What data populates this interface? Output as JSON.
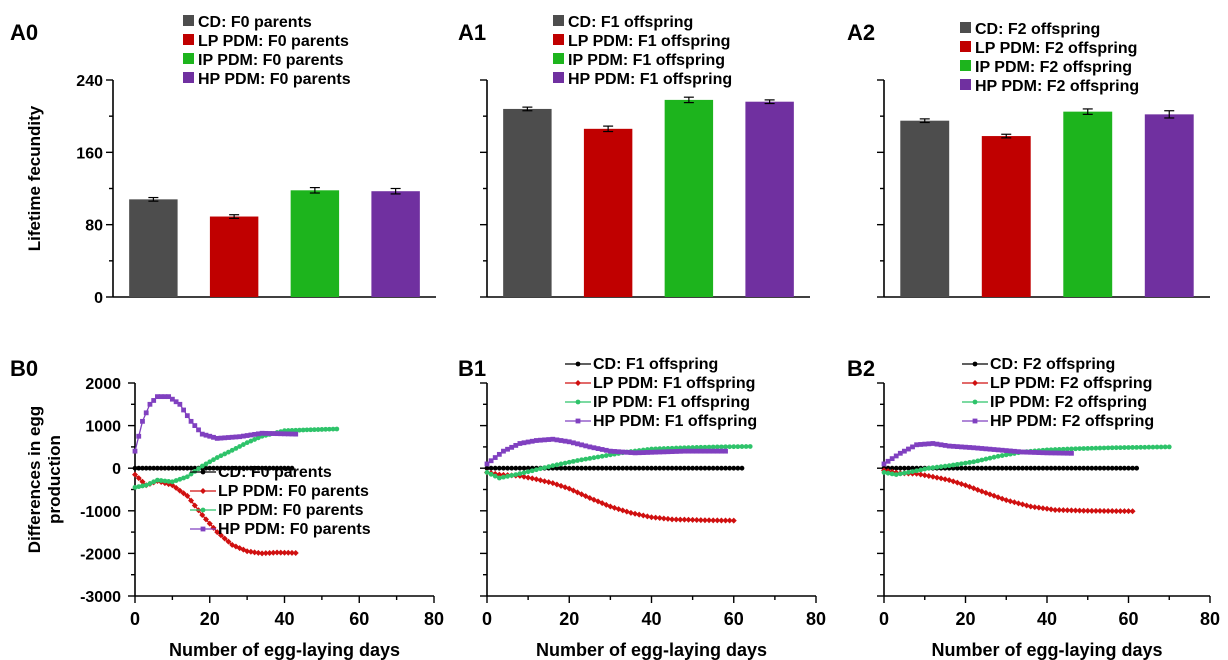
{
  "colors": {
    "CD": "#4d4d4d",
    "LP": "#c00000",
    "IP": "#1db41d",
    "HP": "#7030a0",
    "B_CD": "#000000",
    "B_LP": "#d01010",
    "B_IP": "#2ec36a",
    "B_HP": "#8040c0"
  },
  "chart_data": [
    {
      "panel": "A0",
      "type": "bar",
      "ylabel": "Lifetime fecundity",
      "ylim": [
        0,
        240
      ],
      "yticks": [
        "0",
        "80",
        "160",
        "240"
      ],
      "categories": [
        "CD",
        "LP PDM",
        "IP PDM",
        "HP PDM"
      ],
      "values": [
        108,
        89,
        118,
        117
      ],
      "errors": [
        2,
        2,
        3,
        3
      ],
      "legend": [
        "CD: F0 parents",
        "LP PDM: F0 parents",
        "IP PDM: F0 parents",
        "HP PDM: F0 parents"
      ]
    },
    {
      "panel": "A1",
      "type": "bar",
      "ylim": [
        0,
        240
      ],
      "categories": [
        "CD",
        "LP PDM",
        "IP PDM",
        "HP PDM"
      ],
      "values": [
        208,
        186,
        218,
        216
      ],
      "errors": [
        2,
        3,
        3,
        2
      ],
      "legend": [
        "CD: F1 offspring",
        "LP PDM: F1 offspring",
        "IP PDM: F1 offspring",
        "HP PDM: F1 offspring"
      ]
    },
    {
      "panel": "A2",
      "type": "bar",
      "ylim": [
        0,
        240
      ],
      "categories": [
        "CD",
        "LP PDM",
        "IP PDM",
        "HP PDM"
      ],
      "values": [
        195,
        178,
        205,
        202
      ],
      "errors": [
        2,
        2,
        3,
        4
      ],
      "legend": [
        "CD: F2 offspring",
        "LP PDM: F2 offspring",
        "IP PDM: F2 offspring",
        "HP PDM: F2 offspring"
      ]
    },
    {
      "panel": "B0",
      "type": "line",
      "ylabel": "Differences in egg production",
      "xlabel": "Number of egg-laying days",
      "xlim": [
        0,
        80
      ],
      "ylim": [
        -3000,
        2000
      ],
      "xticks": [
        "0",
        "20",
        "40",
        "60",
        "80"
      ],
      "yticks": [
        "-3000",
        "-2000",
        "-1000",
        "0",
        "1000",
        "2000"
      ],
      "legend": [
        "CD: F0 parents",
        "LP PDM: F0 parents",
        "IP PDM: F0 parents",
        "HP PDM: F0 parents"
      ],
      "series": [
        {
          "name": "CD: F0 parents",
          "points": [
            [
              0,
              0
            ],
            [
              42,
              0
            ]
          ]
        },
        {
          "name": "LP PDM: F0 parents",
          "points": [
            [
              0,
              -150
            ],
            [
              3,
              -400
            ],
            [
              6,
              -300
            ],
            [
              10,
              -400
            ],
            [
              14,
              -650
            ],
            [
              18,
              -1100
            ],
            [
              22,
              -1500
            ],
            [
              26,
              -1800
            ],
            [
              30,
              -1950
            ],
            [
              34,
              -2000
            ],
            [
              38,
              -1980
            ],
            [
              43,
              -1990
            ]
          ]
        },
        {
          "name": "IP PDM: F0 parents",
          "points": [
            [
              0,
              -450
            ],
            [
              3,
              -400
            ],
            [
              6,
              -280
            ],
            [
              10,
              -320
            ],
            [
              14,
              -200
            ],
            [
              18,
              50
            ],
            [
              22,
              250
            ],
            [
              26,
              420
            ],
            [
              30,
              600
            ],
            [
              34,
              750
            ],
            [
              40,
              880
            ],
            [
              46,
              900
            ],
            [
              54,
              920
            ]
          ]
        },
        {
          "name": "HP PDM: F0 parents",
          "points": [
            [
              0,
              400
            ],
            [
              2,
              1100
            ],
            [
              4,
              1500
            ],
            [
              6,
              1680
            ],
            [
              9,
              1680
            ],
            [
              12,
              1500
            ],
            [
              15,
              1100
            ],
            [
              18,
              800
            ],
            [
              22,
              700
            ],
            [
              28,
              740
            ],
            [
              34,
              820
            ],
            [
              43,
              800
            ]
          ]
        }
      ]
    },
    {
      "panel": "B1",
      "type": "line",
      "xlabel": "Number of egg-laying days",
      "xlim": [
        0,
        80
      ],
      "ylim": [
        -3000,
        2000
      ],
      "xticks": [
        "0",
        "20",
        "40",
        "60",
        "80"
      ],
      "legend": [
        "CD: F1 offspring",
        "LP PDM: F1 offspring",
        "IP PDM: F1 offspring",
        "HP PDM: F1 offspring"
      ],
      "series": [
        {
          "name": "CD: F1 offspring",
          "points": [
            [
              0,
              0
            ],
            [
              62,
              0
            ]
          ]
        },
        {
          "name": "LP PDM: F1 offspring",
          "points": [
            [
              0,
              -100
            ],
            [
              3,
              -150
            ],
            [
              8,
              -180
            ],
            [
              12,
              -260
            ],
            [
              16,
              -350
            ],
            [
              20,
              -480
            ],
            [
              25,
              -700
            ],
            [
              30,
              -900
            ],
            [
              35,
              -1050
            ],
            [
              40,
              -1150
            ],
            [
              45,
              -1200
            ],
            [
              52,
              -1220
            ],
            [
              60,
              -1230
            ]
          ]
        },
        {
          "name": "IP PDM: F1 offspring",
          "points": [
            [
              0,
              -100
            ],
            [
              3,
              -230
            ],
            [
              7,
              -150
            ],
            [
              11,
              -60
            ],
            [
              16,
              60
            ],
            [
              22,
              180
            ],
            [
              28,
              280
            ],
            [
              34,
              380
            ],
            [
              40,
              450
            ],
            [
              48,
              480
            ],
            [
              56,
              500
            ],
            [
              64,
              510
            ]
          ]
        },
        {
          "name": "HP PDM: F1 offspring",
          "points": [
            [
              0,
              100
            ],
            [
              4,
              400
            ],
            [
              8,
              580
            ],
            [
              12,
              650
            ],
            [
              16,
              680
            ],
            [
              20,
              620
            ],
            [
              25,
              500
            ],
            [
              30,
              400
            ],
            [
              36,
              360
            ],
            [
              42,
              380
            ],
            [
              48,
              400
            ],
            [
              58,
              400
            ]
          ]
        }
      ]
    },
    {
      "panel": "B2",
      "type": "line",
      "xlabel": "Number of egg-laying days",
      "xlim": [
        0,
        80
      ],
      "ylim": [
        -3000,
        2000
      ],
      "xticks": [
        "0",
        "20",
        "40",
        "60",
        "80"
      ],
      "legend": [
        "CD: F2 offspring",
        "LP PDM: F2 offspring",
        "IP PDM: F2 offspring",
        "HP PDM: F2 offspring"
      ],
      "series": [
        {
          "name": "CD: F2 offspring",
          "points": [
            [
              0,
              0
            ],
            [
              62,
              0
            ]
          ]
        },
        {
          "name": "LP PDM: F2 offspring",
          "points": [
            [
              0,
              -50
            ],
            [
              4,
              -120
            ],
            [
              8,
              -130
            ],
            [
              12,
              -200
            ],
            [
              16,
              -280
            ],
            [
              20,
              -400
            ],
            [
              25,
              -580
            ],
            [
              30,
              -750
            ],
            [
              36,
              -900
            ],
            [
              42,
              -980
            ],
            [
              50,
              -1000
            ],
            [
              61,
              -1010
            ]
          ]
        },
        {
          "name": "IP PDM: F2 offspring",
          "points": [
            [
              0,
              -100
            ],
            [
              3,
              -150
            ],
            [
              7,
              -80
            ],
            [
              11,
              0
            ],
            [
              16,
              60
            ],
            [
              22,
              150
            ],
            [
              28,
              280
            ],
            [
              34,
              380
            ],
            [
              40,
              430
            ],
            [
              48,
              460
            ],
            [
              56,
              480
            ],
            [
              70,
              500
            ]
          ]
        },
        {
          "name": "HP PDM: F2 offspring",
          "points": [
            [
              0,
              100
            ],
            [
              4,
              350
            ],
            [
              8,
              550
            ],
            [
              12,
              580
            ],
            [
              16,
              520
            ],
            [
              22,
              480
            ],
            [
              28,
              430
            ],
            [
              34,
              380
            ],
            [
              40,
              360
            ],
            [
              46,
              350
            ]
          ]
        }
      ]
    }
  ]
}
